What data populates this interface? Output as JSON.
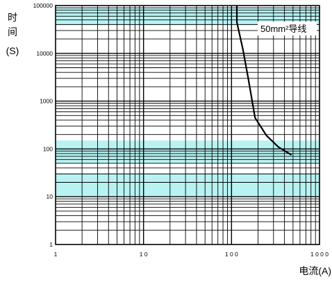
{
  "chart_data": {
    "type": "line",
    "x_scale": "log",
    "y_scale": "log",
    "xlim": [
      1,
      1000
    ],
    "ylim": [
      1,
      100000
    ],
    "grid": true,
    "x_ticks": [
      {
        "value": 1,
        "label": "1"
      },
      {
        "value": 10,
        "label": "1 0"
      },
      {
        "value": 100,
        "label": "1 0 0"
      },
      {
        "value": 1000,
        "label": "1 0 0 0"
      }
    ],
    "y_ticks": [
      {
        "value": 1,
        "label": "1"
      },
      {
        "value": 10,
        "label": "10"
      },
      {
        "value": 100,
        "label": "100"
      },
      {
        "value": 1000,
        "label": "1000"
      },
      {
        "value": 10000,
        "label": "10000"
      },
      {
        "value": 100000,
        "label": "100000"
      }
    ],
    "ylabel_lines": [
      "时",
      "间",
      "(S)"
    ],
    "xlabel": "电流(A)",
    "series": [
      {
        "name": "50mm²导线",
        "color": "#000000",
        "points": [
          [
            115,
            170000
          ],
          [
            115,
            45000
          ],
          [
            135,
            12000
          ],
          [
            155,
            3000
          ],
          [
            185,
            450
          ],
          [
            250,
            190
          ],
          [
            340,
            110
          ],
          [
            480,
            75
          ]
        ]
      }
    ],
    "highlight_color": "#b8f2f2",
    "highlight_bands_y": [
      [
        10,
        30
      ],
      [
        50,
        150
      ],
      [
        40000,
        90000
      ]
    ],
    "highlight_bands_x": [],
    "line_color": "#000000"
  }
}
